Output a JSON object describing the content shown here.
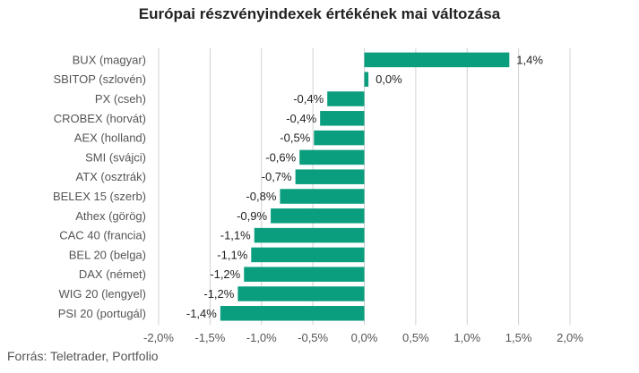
{
  "title": "Európai részvényindexek értékének mai változása",
  "source": "Forrás: Teletrader, Portfolio",
  "colors": {
    "bar": "#0a9e7e",
    "grid": "#d0d0d0",
    "label": "#555555",
    "value": "#222222"
  },
  "chart_data": {
    "type": "bar",
    "orientation": "horizontal",
    "categories": [
      "BUX (magyar)",
      "SBITOP (szlovén)",
      "PX (cseh)",
      "CROBEX (horvát)",
      "AEX (holland)",
      "SMI (svájci)",
      "ATX (osztrák)",
      "BELEX 15 (szerb)",
      "Athex (görög)",
      "CAC 40 (francia)",
      "BEL 20 (belga)",
      "DAX (német)",
      "WIG 20 (lengyel)",
      "PSI 20 (portugál)"
    ],
    "values": [
      1.41,
      0.04,
      -0.36,
      -0.43,
      -0.49,
      -0.63,
      -0.67,
      -0.82,
      -0.91,
      -1.07,
      -1.1,
      -1.17,
      -1.23,
      -1.4
    ],
    "value_labels": [
      "1,4%",
      "0,0%",
      "-0,4%",
      "-0,4%",
      "-0,5%",
      "-0,6%",
      "-0,7%",
      "-0,8%",
      "-0,9%",
      "-1,1%",
      "-1,1%",
      "-1,2%",
      "-1,2%",
      "-1,4%"
    ],
    "xlim": [
      -2.0,
      2.0
    ],
    "xticks": [
      -2.0,
      -1.5,
      -1.0,
      -0.5,
      0.0,
      0.5,
      1.0,
      1.5,
      2.0
    ],
    "xtick_labels": [
      "-2,0%",
      "-1,5%",
      "-1,0%",
      "-0,5%",
      "0,0%",
      "0,5%",
      "1,0%",
      "1,5%",
      "2,0%"
    ],
    "grid": true,
    "legend": "none"
  }
}
